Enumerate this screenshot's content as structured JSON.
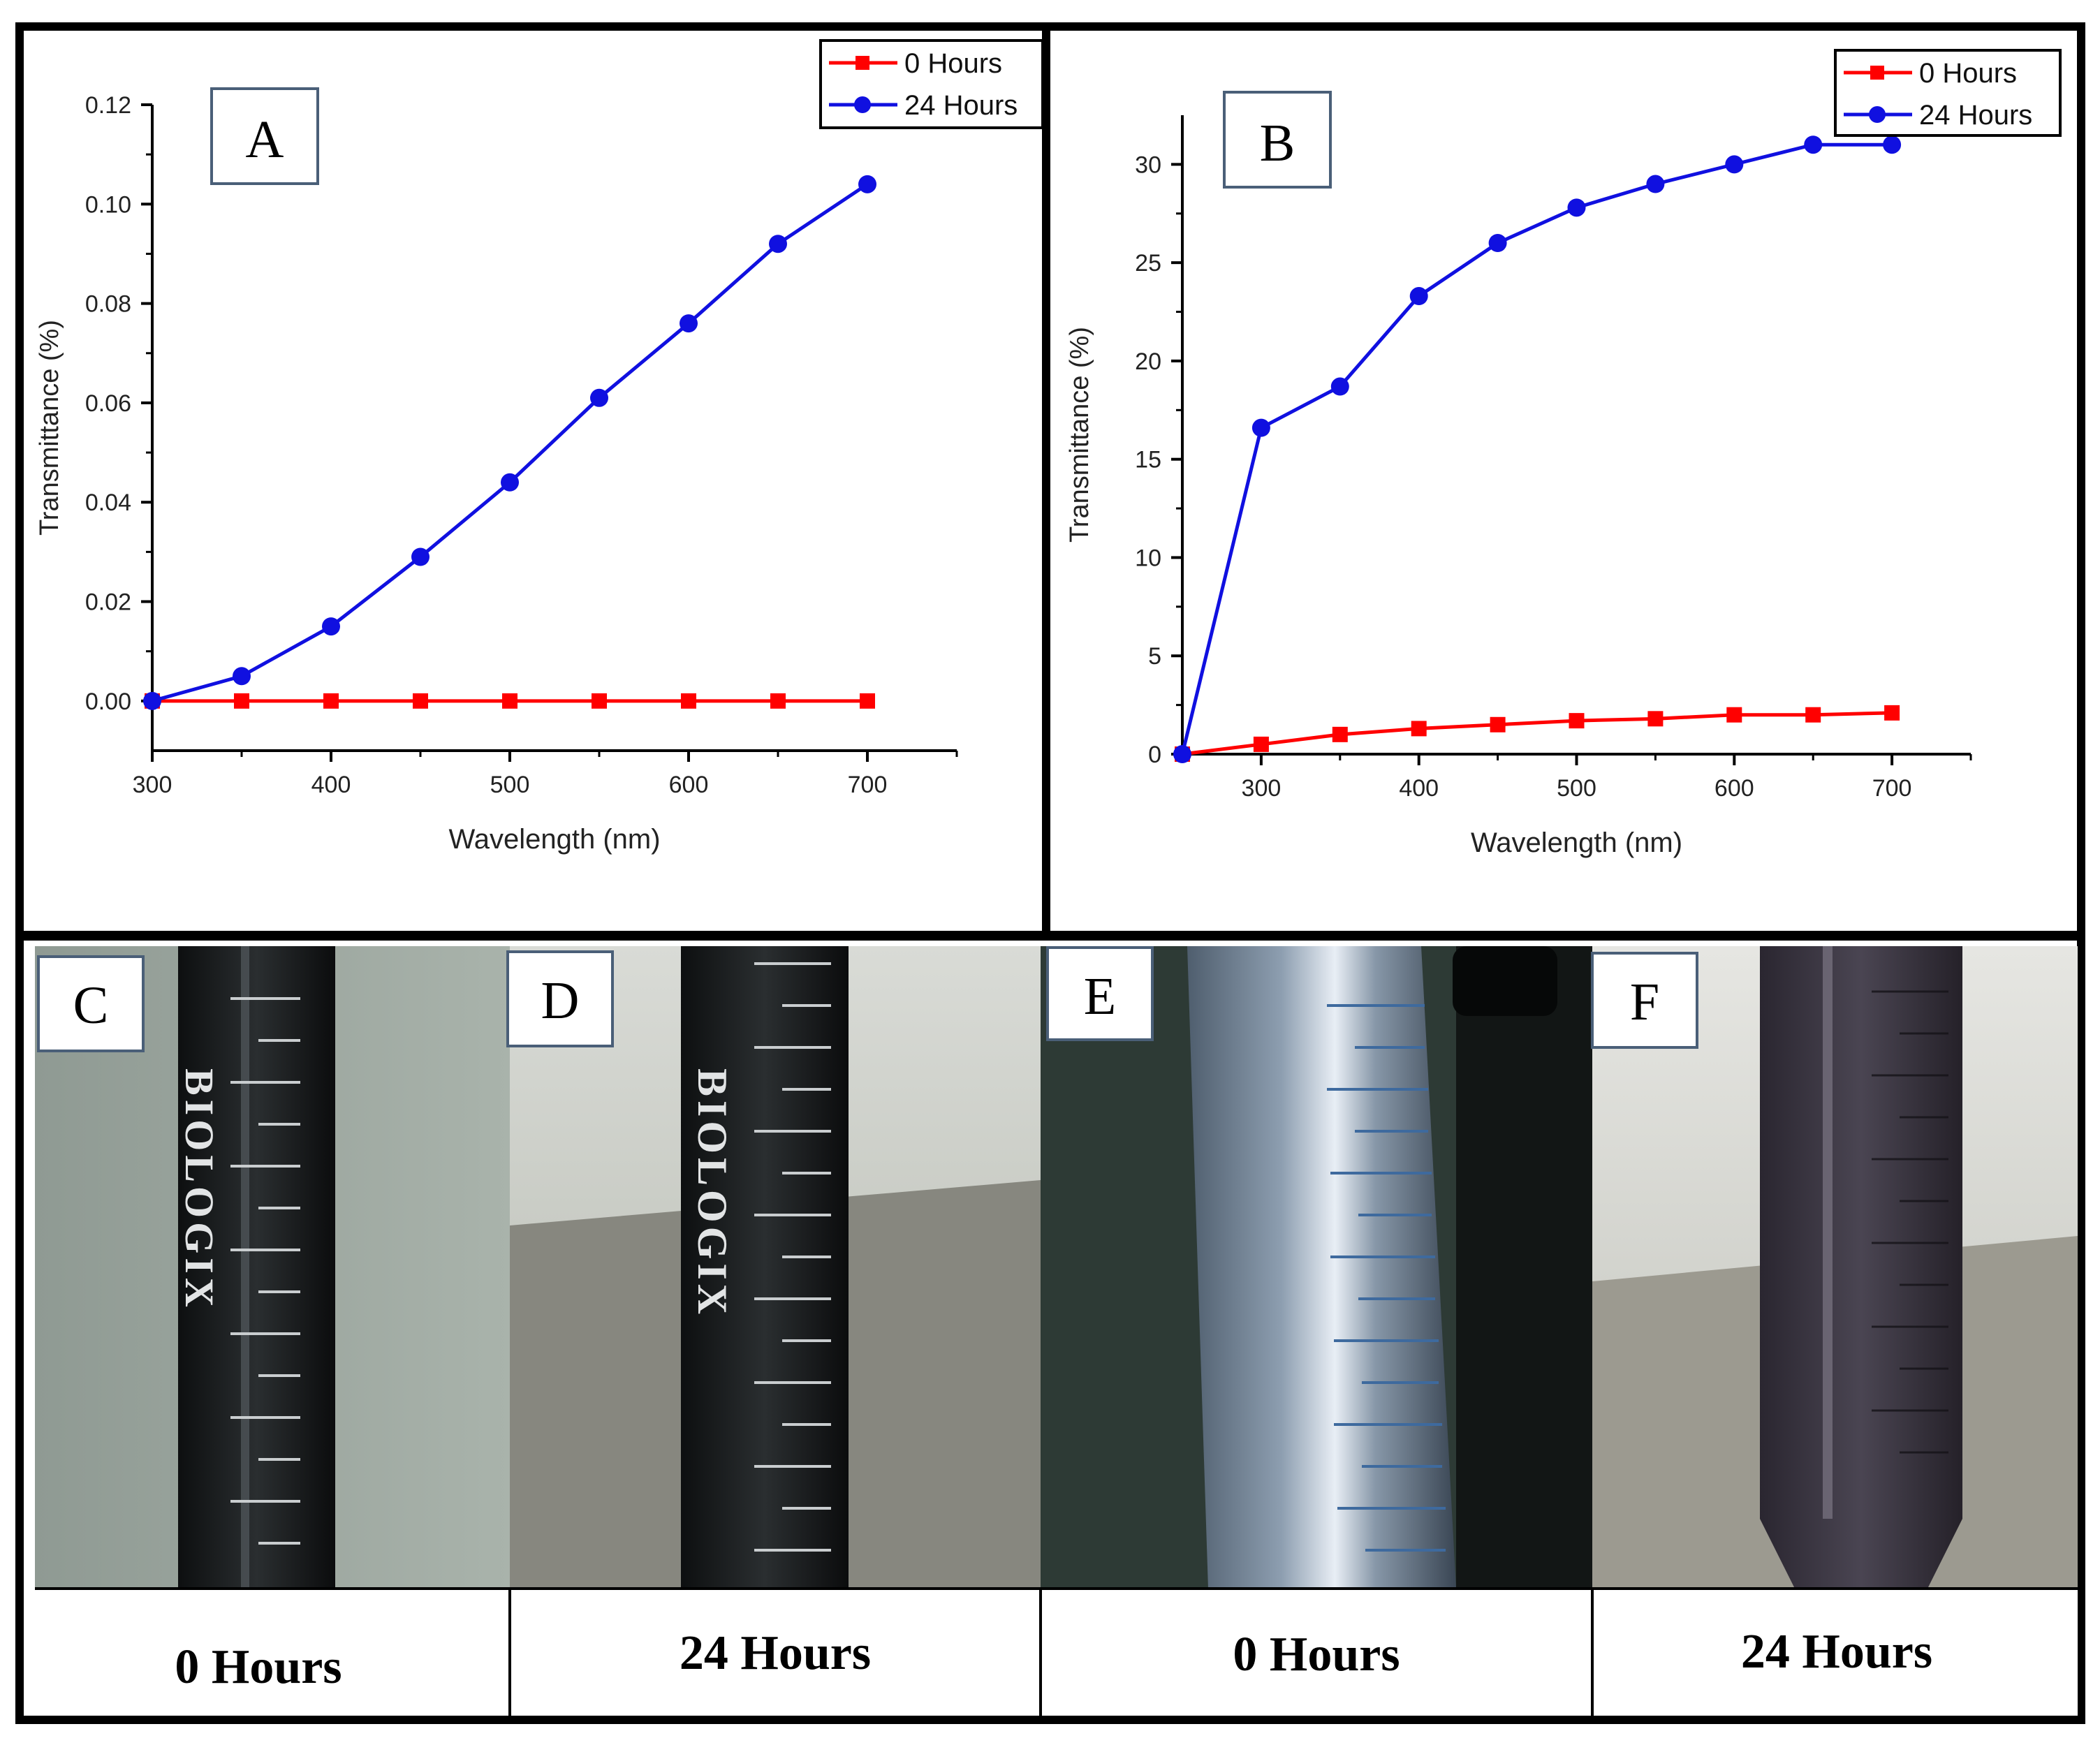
{
  "panels": {
    "A": {
      "letter": "A"
    },
    "B": {
      "letter": "B"
    },
    "C": {
      "letter": "C",
      "caption": "0 Hours",
      "tube_lettering": "BIOLOGIX"
    },
    "D": {
      "letter": "D",
      "caption": "24 Hours",
      "tube_lettering": "BIOLOGIX"
    },
    "E": {
      "letter": "E",
      "caption": "0 Hours"
    },
    "F": {
      "letter": "F",
      "caption": "24 Hours"
    }
  },
  "colors": {
    "series_0h": "#ff0000",
    "series_24h": "#1010e0",
    "frame": "#000000"
  },
  "chart_data": [
    {
      "id": "A",
      "type": "line",
      "xlabel": "Wavelength (nm)",
      "ylabel": "Transmittance (%)",
      "xlim": [
        300,
        750
      ],
      "ylim": [
        -0.01,
        0.12
      ],
      "xticks": [
        300,
        400,
        500,
        600,
        700
      ],
      "xtick_labels": [
        "300",
        "400",
        "500",
        "600",
        "700"
      ],
      "yticks": [
        0,
        0.02,
        0.04,
        0.06,
        0.08,
        0.1,
        0.12
      ],
      "ytick_labels": [
        "0.00",
        "0.02",
        "0.04",
        "0.06",
        "0.08",
        "0.10",
        "0.12"
      ],
      "legend_position": "top-right",
      "series": [
        {
          "name": "0 Hours",
          "marker": "square",
          "color": "#ff0000",
          "x": [
            300,
            350,
            400,
            450,
            500,
            550,
            600,
            650,
            700
          ],
          "y": [
            0,
            0,
            0,
            0,
            0,
            0,
            0,
            0,
            0
          ]
        },
        {
          "name": "24 Hours",
          "marker": "circle",
          "color": "#1010e0",
          "x": [
            300,
            350,
            400,
            450,
            500,
            550,
            600,
            650,
            700
          ],
          "y": [
            0,
            0.005,
            0.015,
            0.029,
            0.044,
            0.061,
            0.076,
            0.092,
            0.104
          ]
        }
      ]
    },
    {
      "id": "B",
      "type": "line",
      "xlabel": "Wavelength (nm)",
      "ylabel": "Transmittance (%)",
      "xlim": [
        250,
        750
      ],
      "ylim": [
        0,
        32.5
      ],
      "xticks": [
        300,
        400,
        500,
        600,
        700
      ],
      "xtick_labels": [
        "300",
        "400",
        "500",
        "600",
        "700"
      ],
      "yticks": [
        0,
        5,
        10,
        15,
        20,
        25,
        30
      ],
      "ytick_labels": [
        "0",
        "5",
        "10",
        "15",
        "20",
        "25",
        "30"
      ],
      "legend_position": "top-right",
      "series": [
        {
          "name": "0 Hours",
          "marker": "square",
          "color": "#ff0000",
          "x": [
            250,
            300,
            350,
            400,
            450,
            500,
            550,
            600,
            650,
            700
          ],
          "y": [
            0,
            0.5,
            1.0,
            1.3,
            1.5,
            1.7,
            1.8,
            2.0,
            2.0,
            2.1
          ]
        },
        {
          "name": "24 Hours",
          "marker": "circle",
          "color": "#1010e0",
          "x": [
            250,
            300,
            350,
            400,
            450,
            500,
            550,
            600,
            650,
            700
          ],
          "y": [
            0,
            16.6,
            18.7,
            23.3,
            26.0,
            27.8,
            29.0,
            30.0,
            31.0,
            31.0
          ]
        }
      ]
    }
  ]
}
